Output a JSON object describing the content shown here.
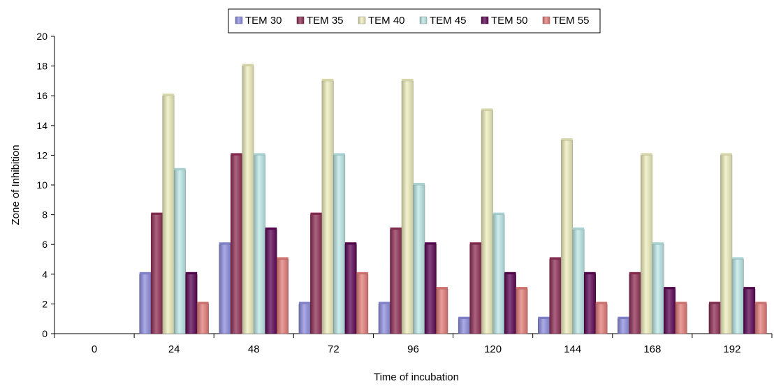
{
  "chart_data": {
    "type": "bar",
    "title": "",
    "xlabel": "Time of incubation",
    "ylabel": "Zone of Inhibition",
    "ylim": [
      0,
      20
    ],
    "ytick_step": 2,
    "grid": false,
    "legend_position": "top",
    "categories": [
      "0",
      "24",
      "48",
      "72",
      "96",
      "120",
      "144",
      "168",
      "192"
    ],
    "series": [
      {
        "name": "TEM 30",
        "color": "#8f8fe0",
        "values": [
          0,
          4,
          6,
          2,
          2,
          1,
          1,
          1,
          0
        ]
      },
      {
        "name": "TEM 35",
        "color": "#8f2f56",
        "values": [
          0,
          8,
          12,
          8,
          7,
          6,
          5,
          4,
          2
        ]
      },
      {
        "name": "TEM 40",
        "color": "#eeeebd",
        "values": [
          0,
          16,
          18,
          17,
          17,
          15,
          13,
          12,
          12
        ]
      },
      {
        "name": "TEM 45",
        "color": "#bde8e8",
        "values": [
          0,
          11,
          12,
          12,
          10,
          8,
          7,
          6,
          5
        ]
      },
      {
        "name": "TEM 50",
        "color": "#5c0654",
        "values": [
          0,
          4,
          7,
          6,
          6,
          4,
          4,
          3,
          3
        ]
      },
      {
        "name": "TEM 55",
        "color": "#e37d79",
        "values": [
          0,
          2,
          5,
          4,
          3,
          3,
          2,
          2,
          2
        ]
      }
    ]
  }
}
